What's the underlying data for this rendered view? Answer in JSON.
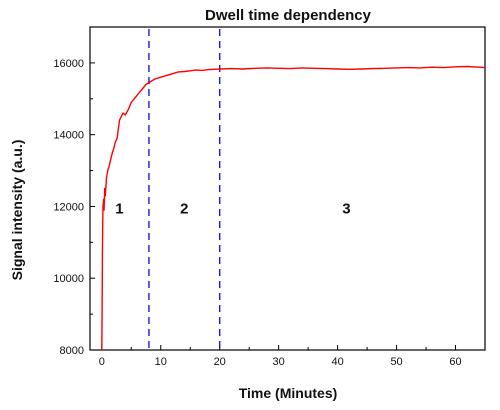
{
  "chart_data": {
    "type": "line",
    "title": "Dwell time dependency",
    "xlabel": "Time (Minutes)",
    "ylabel": "Signal intensity (a.u.)",
    "xlim": [
      -2,
      65
    ],
    "ylim": [
      8000,
      17000
    ],
    "xticks": [
      0,
      10,
      20,
      30,
      40,
      50,
      60
    ],
    "yticks": [
      8000,
      10000,
      12000,
      14000,
      16000
    ],
    "grid": false,
    "series": [
      {
        "color": "#ff0000",
        "x": [
          0,
          0.05,
          0.1,
          0.15,
          0.2,
          0.3,
          0.4,
          0.5,
          0.6,
          0.8,
          1.0,
          1.2,
          1.5,
          1.8,
          2.0,
          2.3,
          2.6,
          3.0,
          3.3,
          3.6,
          4.0,
          4.5,
          5.0,
          5.5,
          6.0,
          6.5,
          7.0,
          7.5,
          8.0,
          9.0,
          10.0,
          11.0,
          12.0,
          13.0,
          14.0,
          15.0,
          16.0,
          17.0,
          18.0,
          19.0,
          20.0,
          22.0,
          24.0,
          26.0,
          28.0,
          30.0,
          32.0,
          34.0,
          36.0,
          38.0,
          40.0,
          42.0,
          44.0,
          46.0,
          48.0,
          50.0,
          52.0,
          54.0,
          56.0,
          58.0,
          60.0,
          62.0,
          64.0,
          65.0
        ],
        "y": [
          8000,
          9000,
          10600,
          11500,
          12000,
          12200,
          11900,
          12500,
          12300,
          12800,
          13000,
          13100,
          13300,
          13500,
          13600,
          13800,
          13900,
          14400,
          14500,
          14600,
          14550,
          14700,
          14900,
          15000,
          15100,
          15200,
          15300,
          15400,
          15450,
          15550,
          15600,
          15650,
          15700,
          15750,
          15760,
          15780,
          15800,
          15790,
          15810,
          15820,
          15830,
          15840,
          15830,
          15850,
          15860,
          15850,
          15840,
          15860,
          15850,
          15840,
          15830,
          15820,
          15830,
          15840,
          15850,
          15860,
          15870,
          15860,
          15880,
          15870,
          15890,
          15900,
          15880,
          15870
        ]
      }
    ],
    "dividers": {
      "x": [
        8,
        20
      ],
      "color": "#1a1ad6"
    },
    "regions": [
      {
        "label": "1",
        "x": 3,
        "y": 11800
      },
      {
        "label": "2",
        "x": 14,
        "y": 11800
      },
      {
        "label": "3",
        "x": 41.5,
        "y": 11800
      }
    ]
  }
}
